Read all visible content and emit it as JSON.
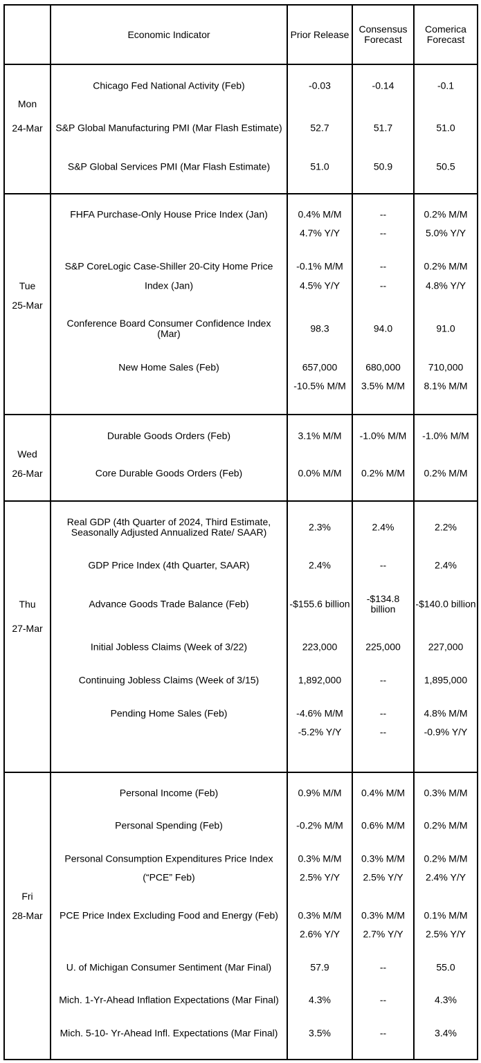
{
  "header": {
    "indicator": "Economic Indicator",
    "prior": "Prior Release",
    "consensus": "Consensus Forecast",
    "comerica": "Comerica Forecast"
  },
  "days": [
    {
      "day": "Mon",
      "date": "24-Mar",
      "rows": [
        {
          "indicator": "Chicago Fed National Activity (Feb)",
          "prior": "-0.03",
          "consensus": "-0.14",
          "comerica": "-0.1"
        },
        {
          "indicator": "S&P Global Manufacturing PMI (Mar Flash Estimate)",
          "prior": "52.7",
          "consensus": "51.7",
          "comerica": "51.0"
        },
        {
          "indicator": "S&P Global Services PMI (Mar Flash Estimate)",
          "prior": "51.0",
          "consensus": "50.9",
          "comerica": "50.5"
        }
      ]
    },
    {
      "day": "Tue",
      "date": "25-Mar",
      "rows": [
        {
          "indicator": "FHFA Purchase-Only House Price Index (Jan)",
          "prior": "0.4% M/M",
          "consensus": "--",
          "comerica": "0.2% M/M"
        },
        {
          "indicator": "",
          "prior": "4.7% Y/Y",
          "consensus": "--",
          "comerica": "5.0% Y/Y"
        },
        {
          "indicator": "S&P CoreLogic Case-Shiller 20-City Home Price",
          "prior": "-0.1% M/M",
          "consensus": "--",
          "comerica": "0.2% M/M"
        },
        {
          "indicator": "Index (Jan)",
          "prior": "4.5% Y/Y",
          "consensus": "--",
          "comerica": "4.8% Y/Y"
        },
        {
          "indicator": "Conference Board Consumer Confidence Index (Mar)",
          "prior": "98.3",
          "consensus": "94.0",
          "comerica": "91.0"
        },
        {
          "indicator": "New Home Sales (Feb)",
          "prior": "657,000",
          "consensus": "680,000",
          "comerica": "710,000"
        },
        {
          "indicator": "",
          "prior": "-10.5% M/M",
          "consensus": "3.5% M/M",
          "comerica": "8.1% M/M"
        }
      ]
    },
    {
      "day": "Wed",
      "date": "26-Mar",
      "rows": [
        {
          "indicator": "Durable Goods Orders (Feb)",
          "prior": "3.1% M/M",
          "consensus": "-1.0% M/M",
          "comerica": "-1.0% M/M"
        },
        {
          "indicator": "Core Durable Goods Orders (Feb)",
          "prior": "0.0% M/M",
          "consensus": "0.2% M/M",
          "comerica": "0.2% M/M"
        }
      ]
    },
    {
      "day": "Thu",
      "date": "27-Mar",
      "rows": [
        {
          "indicator": "Real GDP (4th Quarter of 2024, Third Estimate, Seasonally Adjusted Annualized Rate/ SAAR)",
          "prior": "2.3%",
          "consensus": "2.4%",
          "comerica": "2.2%"
        },
        {
          "indicator": "GDP Price Index (4th Quarter, SAAR)",
          "prior": "2.4%",
          "consensus": "--",
          "comerica": "2.4%"
        },
        {
          "indicator": "Advance Goods Trade Balance (Feb)",
          "prior": "-$155.6 billion",
          "consensus": "-$134.8 billion",
          "comerica": "-$140.0 billion"
        },
        {
          "indicator": "Initial Jobless Claims (Week of 3/22)",
          "prior": "223,000",
          "consensus": "225,000",
          "comerica": "227,000"
        },
        {
          "indicator": "Continuing Jobless Claims (Week of 3/15)",
          "prior": "1,892,000",
          "consensus": "--",
          "comerica": "1,895,000"
        },
        {
          "indicator": "Pending Home Sales (Feb)",
          "prior": "-4.6% M/M",
          "consensus": "--",
          "comerica": "4.8% M/M"
        },
        {
          "indicator": "",
          "prior": "-5.2% Y/Y",
          "consensus": "--",
          "comerica": "-0.9% Y/Y"
        }
      ]
    },
    {
      "day": "Fri",
      "date": "28-Mar",
      "rows": [
        {
          "indicator": "Personal Income (Feb)",
          "prior": "0.9% M/M",
          "consensus": "0.4% M/M",
          "comerica": "0.3% M/M"
        },
        {
          "indicator": "Personal Spending (Feb)",
          "prior": "-0.2% M/M",
          "consensus": "0.6% M/M",
          "comerica": "0.2% M/M"
        },
        {
          "indicator": "Personal Consumption Expenditures Price Index",
          "prior": "0.3% M/M",
          "consensus": "0.3% M/M",
          "comerica": "0.2% M/M"
        },
        {
          "indicator": "(“PCE” Feb)",
          "prior": "2.5% Y/Y",
          "consensus": "2.5% Y/Y",
          "comerica": "2.4% Y/Y"
        },
        {
          "indicator": "PCE Price Index Excluding Food and Energy (Feb)",
          "prior": "0.3% M/M",
          "consensus": "0.3% M/M",
          "comerica": "0.1% M/M"
        },
        {
          "indicator": "",
          "prior": "2.6% Y/Y",
          "consensus": "2.7% Y/Y",
          "comerica": "2.5% Y/Y"
        },
        {
          "indicator": "U. of Michigan Consumer Sentiment (Mar Final)",
          "prior": "57.9",
          "consensus": "--",
          "comerica": "55.0"
        },
        {
          "indicator": "Mich. 1-Yr-Ahead Inflation Expectations (Mar Final)",
          "prior": "4.3%",
          "consensus": "--",
          "comerica": "4.3%"
        },
        {
          "indicator": "Mich. 5-10- Yr-Ahead Infl. Expectations (Mar Final)",
          "prior": "3.5%",
          "consensus": "--",
          "comerica": "3.4%"
        }
      ]
    }
  ]
}
